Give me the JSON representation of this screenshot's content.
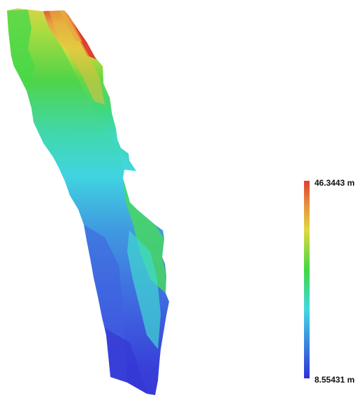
{
  "legend": {
    "max_label": "46.3443 m",
    "min_label": "8.55431 m",
    "max_value": 46.3443,
    "min_value": 8.55431,
    "unit": "m",
    "colors": [
      "#3030d8",
      "#3a7ae0",
      "#40d8e0",
      "#40d840",
      "#e0d840",
      "#e04030"
    ]
  }
}
